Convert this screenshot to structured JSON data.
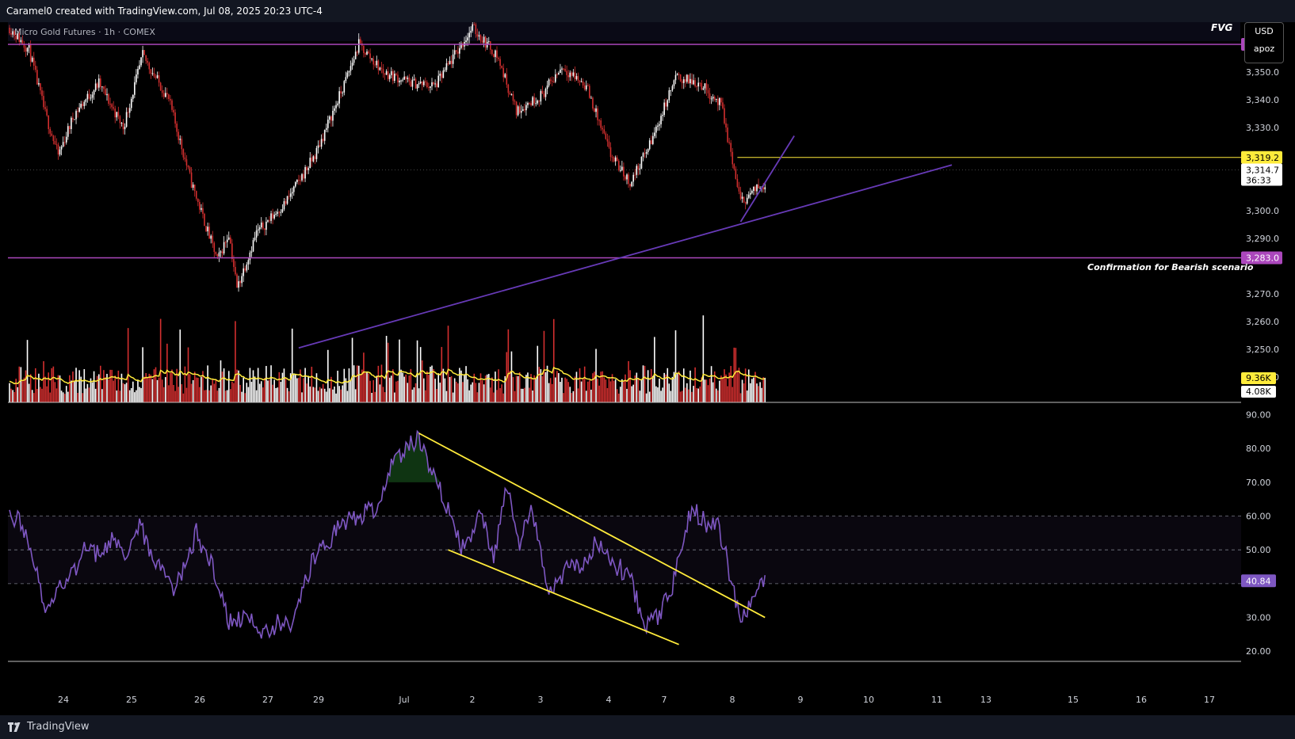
{
  "header": {
    "credit": "Caramel0 created with TradingView.com, Jul 08, 2025 20:23 UTC-4",
    "symbol": "Micro Gold Futures · 1h · COMEX",
    "fvg_label": "FVG",
    "currency": "USD",
    "user": "apoz"
  },
  "footer": {
    "brand": "TradingView"
  },
  "annotations": {
    "bearish": "Confirmation for Bearish scenario"
  },
  "colors": {
    "up": "#ffffff",
    "down": "#d32f2f",
    "purple": "#ab47bc",
    "trend": "#673ab7",
    "yellow": "#ffeb3b",
    "rsi": "#7e57c2"
  },
  "chart_data": [
    {
      "type": "candlestick",
      "ylim": [
        3248,
        3368
      ],
      "y_ticks": [
        "3,360.0",
        "3,350.0",
        "3,340.0",
        "3,330.0",
        "3,300.0",
        "3,290.0",
        "3,270.0",
        "3,260.0",
        "3,250.0",
        "3,240.0"
      ],
      "x_ticks": [
        "24",
        "25",
        "26",
        "27",
        "29",
        "Jul",
        "2",
        "3",
        "4",
        "7",
        "8",
        "9",
        "10",
        "11",
        "13",
        "15",
        "16",
        "17"
      ],
      "close_anchors": [
        [
          0,
          3366
        ],
        [
          12,
          3358
        ],
        [
          22,
          3335
        ],
        [
          30,
          3320
        ],
        [
          40,
          3335
        ],
        [
          55,
          3346
        ],
        [
          70,
          3330
        ],
        [
          82,
          3356
        ],
        [
          98,
          3340
        ],
        [
          112,
          3310
        ],
        [
          128,
          3282
        ],
        [
          135,
          3292
        ],
        [
          140,
          3272
        ],
        [
          152,
          3292
        ],
        [
          170,
          3303
        ],
        [
          188,
          3320
        ],
        [
          205,
          3344
        ],
        [
          215,
          3360
        ],
        [
          230,
          3350
        ],
        [
          248,
          3346
        ],
        [
          262,
          3345
        ],
        [
          275,
          3357
        ],
        [
          285,
          3366
        ],
        [
          300,
          3356
        ],
        [
          312,
          3336
        ],
        [
          328,
          3342
        ],
        [
          340,
          3352
        ],
        [
          355,
          3345
        ],
        [
          370,
          3320
        ],
        [
          382,
          3310
        ],
        [
          395,
          3325
        ],
        [
          410,
          3348
        ],
        [
          425,
          3346
        ],
        [
          438,
          3338
        ],
        [
          450,
          3303
        ],
        [
          458,
          3307
        ],
        [
          465,
          3310
        ]
      ],
      "horizontal_levels": [
        {
          "price": 3360.0,
          "label": "3,360.0",
          "color": "#ab47bc"
        },
        {
          "price": 3283.0,
          "label": "3,283.0",
          "color": "#ab47bc"
        },
        {
          "price": 3319.2,
          "label": "3,319.2",
          "color": "#ffeb3b"
        }
      ],
      "current_price": {
        "label": "3,314.7",
        "countdown": "36:33"
      },
      "trendlines": [
        {
          "from": [
            178,
            3250.5
          ],
          "to": [
            580,
            3316.5
          ],
          "color": "#673ab7"
        },
        {
          "from": [
            450,
            3296
          ],
          "to": [
            483,
            3327
          ],
          "color": "#673ab7"
        }
      ]
    },
    {
      "type": "bar",
      "name": "Volume",
      "ma_label": "9.36K",
      "volume_label": "4.08K"
    },
    {
      "type": "line",
      "name": "RSI",
      "ylim": [
        17,
        92
      ],
      "y_ticks": [
        "90.00",
        "80.00",
        "70.00",
        "60.00",
        "50.00",
        "30.00",
        "20.00"
      ],
      "bands": [
        40,
        50,
        60
      ],
      "current": "40.84",
      "anchors": [
        [
          0,
          59
        ],
        [
          6,
          60
        ],
        [
          14,
          47
        ],
        [
          22,
          34
        ],
        [
          30,
          38
        ],
        [
          40,
          44
        ],
        [
          48,
          52
        ],
        [
          55,
          48
        ],
        [
          65,
          54
        ],
        [
          72,
          49
        ],
        [
          80,
          58
        ],
        [
          90,
          46
        ],
        [
          100,
          38
        ],
        [
          108,
          45
        ],
        [
          115,
          55
        ],
        [
          125,
          45
        ],
        [
          135,
          28
        ],
        [
          145,
          30
        ],
        [
          155,
          26
        ],
        [
          165,
          28
        ],
        [
          175,
          29
        ],
        [
          185,
          45
        ],
        [
          195,
          52
        ],
        [
          205,
          58
        ],
        [
          215,
          60
        ],
        [
          225,
          62
        ],
        [
          235,
          74
        ],
        [
          245,
          80
        ],
        [
          252,
          84
        ],
        [
          260,
          73
        ],
        [
          270,
          62
        ],
        [
          278,
          50
        ],
        [
          290,
          60
        ],
        [
          298,
          48
        ],
        [
          306,
          68
        ],
        [
          314,
          52
        ],
        [
          322,
          62
        ],
        [
          332,
          38
        ],
        [
          342,
          44
        ],
        [
          352,
          46
        ],
        [
          362,
          53
        ],
        [
          372,
          46
        ],
        [
          382,
          42
        ],
        [
          390,
          28
        ],
        [
          398,
          30
        ],
        [
          406,
          36
        ],
        [
          414,
          50
        ],
        [
          420,
          63
        ],
        [
          428,
          58
        ],
        [
          436,
          58
        ],
        [
          442,
          46
        ],
        [
          450,
          28
        ],
        [
          458,
          36
        ],
        [
          465,
          41
        ]
      ],
      "trendlines": [
        {
          "from": [
            252,
            84.5
          ],
          "to": [
            465,
            30
          ],
          "color": "#ffeb3b"
        },
        {
          "from": [
            270,
            50
          ],
          "to": [
            412,
            22
          ],
          "color": "#ffeb3b"
        }
      ]
    }
  ]
}
